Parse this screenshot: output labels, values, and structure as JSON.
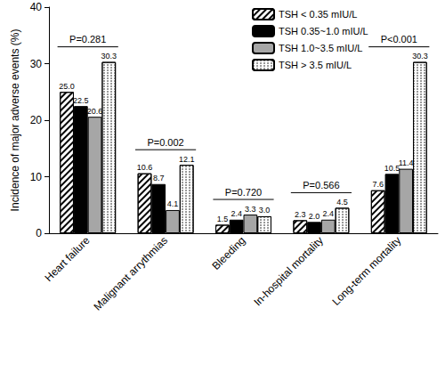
{
  "chart_data": {
    "type": "bar",
    "y_label": "Incidence of major adverse events (%)",
    "categories": [
      "Heart failure",
      "Malignant arrythmias",
      "Bleeding",
      "In-hospital mortality",
      "Long-term mortality"
    ],
    "series": [
      {
        "name": "TSH < 0.35 mIU/L",
        "color": "#ffffff",
        "marker": "hatch",
        "values": [
          25.0,
          10.6,
          1.5,
          2.3,
          7.6
        ],
        "value_labels": [
          "25.0",
          "10.6",
          "1.5",
          "2.3",
          "7.6"
        ]
      },
      {
        "name": "TSH 0.35~1.0 mIU/L",
        "color": "#000000",
        "marker": "solid",
        "values": [
          22.5,
          8.7,
          2.4,
          2.0,
          10.5
        ],
        "value_labels": [
          "22.5",
          "8.7",
          "2.4",
          "2.0",
          "10.5"
        ]
      },
      {
        "name": "TSH 1.0~3.5 mIU/L",
        "color": "#a6a6a6",
        "marker": "solid",
        "values": [
          20.6,
          4.1,
          3.3,
          2.4,
          11.4
        ],
        "value_labels": [
          "20.6",
          "4.1",
          "3.3",
          "2.4",
          "11.4"
        ]
      },
      {
        "name": "TSH > 3.5 mIU/L",
        "color": "#ffffff",
        "marker": "dots",
        "values": [
          30.3,
          12.1,
          3.0,
          4.5,
          30.3
        ],
        "value_labels": [
          "30.3",
          "12.1",
          "3.0",
          "4.5",
          "30.3"
        ]
      }
    ],
    "annotations": [
      {
        "category": "Heart failure",
        "text": "P=0.281"
      },
      {
        "category": "Malignant arrythmias",
        "text": "P=0.002"
      },
      {
        "category": "Bleeding",
        "text": "P=0.720"
      },
      {
        "category": "In-hospital mortality",
        "text": "P=0.566"
      },
      {
        "category": "Long-term mortality",
        "text": "P<0.001"
      }
    ],
    "ylim": [
      0,
      40
    ],
    "yticks": [
      0,
      10,
      20,
      30,
      40
    ],
    "data_labels": true,
    "legend": "top",
    "grid": false
  }
}
